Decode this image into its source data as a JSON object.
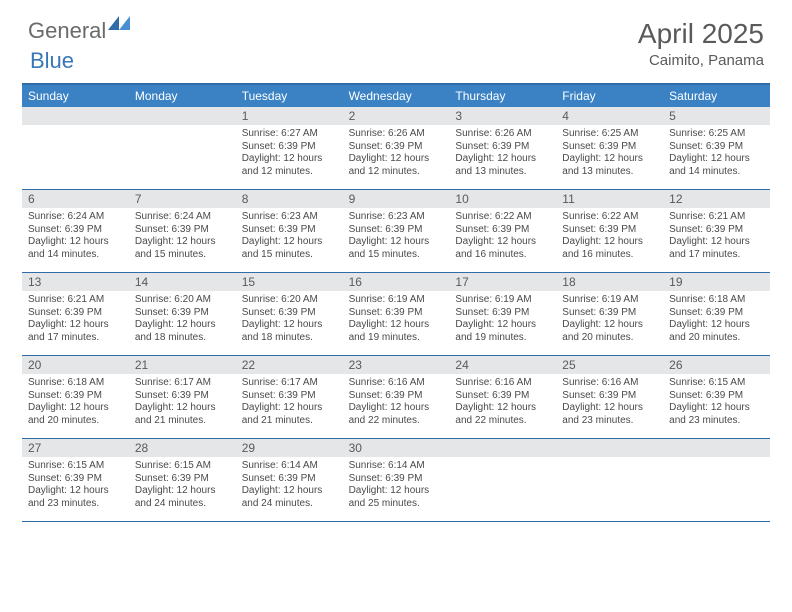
{
  "logo": {
    "text1": "General",
    "text2": "Blue"
  },
  "title": "April 2025",
  "location": "Caimito, Panama",
  "colors": {
    "header_bar": "#3a82c4",
    "rule": "#2f6ca8",
    "daynum_bg": "#e4e6e8",
    "text_muted": "#5a5a5a",
    "logo_gray": "#6a6a6a",
    "logo_blue": "#3a77b7"
  },
  "dow": [
    "Sunday",
    "Monday",
    "Tuesday",
    "Wednesday",
    "Thursday",
    "Friday",
    "Saturday"
  ],
  "weeks": [
    [
      {
        "n": "",
        "sr": "",
        "ss": "",
        "dl": ""
      },
      {
        "n": "",
        "sr": "",
        "ss": "",
        "dl": ""
      },
      {
        "n": "1",
        "sr": "6:27 AM",
        "ss": "6:39 PM",
        "dl": "12 hours and 12 minutes."
      },
      {
        "n": "2",
        "sr": "6:26 AM",
        "ss": "6:39 PM",
        "dl": "12 hours and 12 minutes."
      },
      {
        "n": "3",
        "sr": "6:26 AM",
        "ss": "6:39 PM",
        "dl": "12 hours and 13 minutes."
      },
      {
        "n": "4",
        "sr": "6:25 AM",
        "ss": "6:39 PM",
        "dl": "12 hours and 13 minutes."
      },
      {
        "n": "5",
        "sr": "6:25 AM",
        "ss": "6:39 PM",
        "dl": "12 hours and 14 minutes."
      }
    ],
    [
      {
        "n": "6",
        "sr": "6:24 AM",
        "ss": "6:39 PM",
        "dl": "12 hours and 14 minutes."
      },
      {
        "n": "7",
        "sr": "6:24 AM",
        "ss": "6:39 PM",
        "dl": "12 hours and 15 minutes."
      },
      {
        "n": "8",
        "sr": "6:23 AM",
        "ss": "6:39 PM",
        "dl": "12 hours and 15 minutes."
      },
      {
        "n": "9",
        "sr": "6:23 AM",
        "ss": "6:39 PM",
        "dl": "12 hours and 15 minutes."
      },
      {
        "n": "10",
        "sr": "6:22 AM",
        "ss": "6:39 PM",
        "dl": "12 hours and 16 minutes."
      },
      {
        "n": "11",
        "sr": "6:22 AM",
        "ss": "6:39 PM",
        "dl": "12 hours and 16 minutes."
      },
      {
        "n": "12",
        "sr": "6:21 AM",
        "ss": "6:39 PM",
        "dl": "12 hours and 17 minutes."
      }
    ],
    [
      {
        "n": "13",
        "sr": "6:21 AM",
        "ss": "6:39 PM",
        "dl": "12 hours and 17 minutes."
      },
      {
        "n": "14",
        "sr": "6:20 AM",
        "ss": "6:39 PM",
        "dl": "12 hours and 18 minutes."
      },
      {
        "n": "15",
        "sr": "6:20 AM",
        "ss": "6:39 PM",
        "dl": "12 hours and 18 minutes."
      },
      {
        "n": "16",
        "sr": "6:19 AM",
        "ss": "6:39 PM",
        "dl": "12 hours and 19 minutes."
      },
      {
        "n": "17",
        "sr": "6:19 AM",
        "ss": "6:39 PM",
        "dl": "12 hours and 19 minutes."
      },
      {
        "n": "18",
        "sr": "6:19 AM",
        "ss": "6:39 PM",
        "dl": "12 hours and 20 minutes."
      },
      {
        "n": "19",
        "sr": "6:18 AM",
        "ss": "6:39 PM",
        "dl": "12 hours and 20 minutes."
      }
    ],
    [
      {
        "n": "20",
        "sr": "6:18 AM",
        "ss": "6:39 PM",
        "dl": "12 hours and 20 minutes."
      },
      {
        "n": "21",
        "sr": "6:17 AM",
        "ss": "6:39 PM",
        "dl": "12 hours and 21 minutes."
      },
      {
        "n": "22",
        "sr": "6:17 AM",
        "ss": "6:39 PM",
        "dl": "12 hours and 21 minutes."
      },
      {
        "n": "23",
        "sr": "6:16 AM",
        "ss": "6:39 PM",
        "dl": "12 hours and 22 minutes."
      },
      {
        "n": "24",
        "sr": "6:16 AM",
        "ss": "6:39 PM",
        "dl": "12 hours and 22 minutes."
      },
      {
        "n": "25",
        "sr": "6:16 AM",
        "ss": "6:39 PM",
        "dl": "12 hours and 23 minutes."
      },
      {
        "n": "26",
        "sr": "6:15 AM",
        "ss": "6:39 PM",
        "dl": "12 hours and 23 minutes."
      }
    ],
    [
      {
        "n": "27",
        "sr": "6:15 AM",
        "ss": "6:39 PM",
        "dl": "12 hours and 23 minutes."
      },
      {
        "n": "28",
        "sr": "6:15 AM",
        "ss": "6:39 PM",
        "dl": "12 hours and 24 minutes."
      },
      {
        "n": "29",
        "sr": "6:14 AM",
        "ss": "6:39 PM",
        "dl": "12 hours and 24 minutes."
      },
      {
        "n": "30",
        "sr": "6:14 AM",
        "ss": "6:39 PM",
        "dl": "12 hours and 25 minutes."
      },
      {
        "n": "",
        "sr": "",
        "ss": "",
        "dl": ""
      },
      {
        "n": "",
        "sr": "",
        "ss": "",
        "dl": ""
      },
      {
        "n": "",
        "sr": "",
        "ss": "",
        "dl": ""
      }
    ]
  ],
  "labels": {
    "sunrise": "Sunrise:",
    "sunset": "Sunset:",
    "daylight": "Daylight:"
  }
}
